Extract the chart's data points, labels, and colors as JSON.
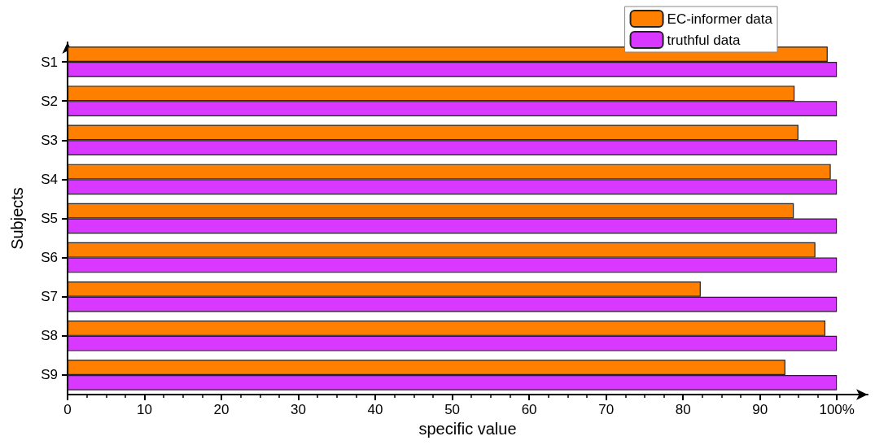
{
  "chart_data": {
    "type": "bar",
    "orientation": "horizontal",
    "xlabel": "specific value",
    "ylabel": "Subjects",
    "categories": [
      "S1",
      "S2",
      "S3",
      "S4",
      "S5",
      "S6",
      "S7",
      "S8",
      "S9"
    ],
    "series": [
      {
        "name": "EC-informer data",
        "color": "#ff8000",
        "values": [
          98.8,
          94.5,
          95.0,
          99.2,
          94.4,
          97.2,
          82.3,
          98.5,
          93.3
        ]
      },
      {
        "name": "truthful data",
        "color": "#d838ff",
        "values": [
          100,
          100,
          100,
          100,
          100,
          100,
          100,
          100,
          100
        ]
      }
    ],
    "xlim": [
      0,
      104
    ],
    "xticks": [
      0,
      10,
      20,
      30,
      40,
      50,
      60,
      70,
      80,
      90,
      {
        "value": 100,
        "label": "100%"
      }
    ],
    "legend": "top right"
  }
}
